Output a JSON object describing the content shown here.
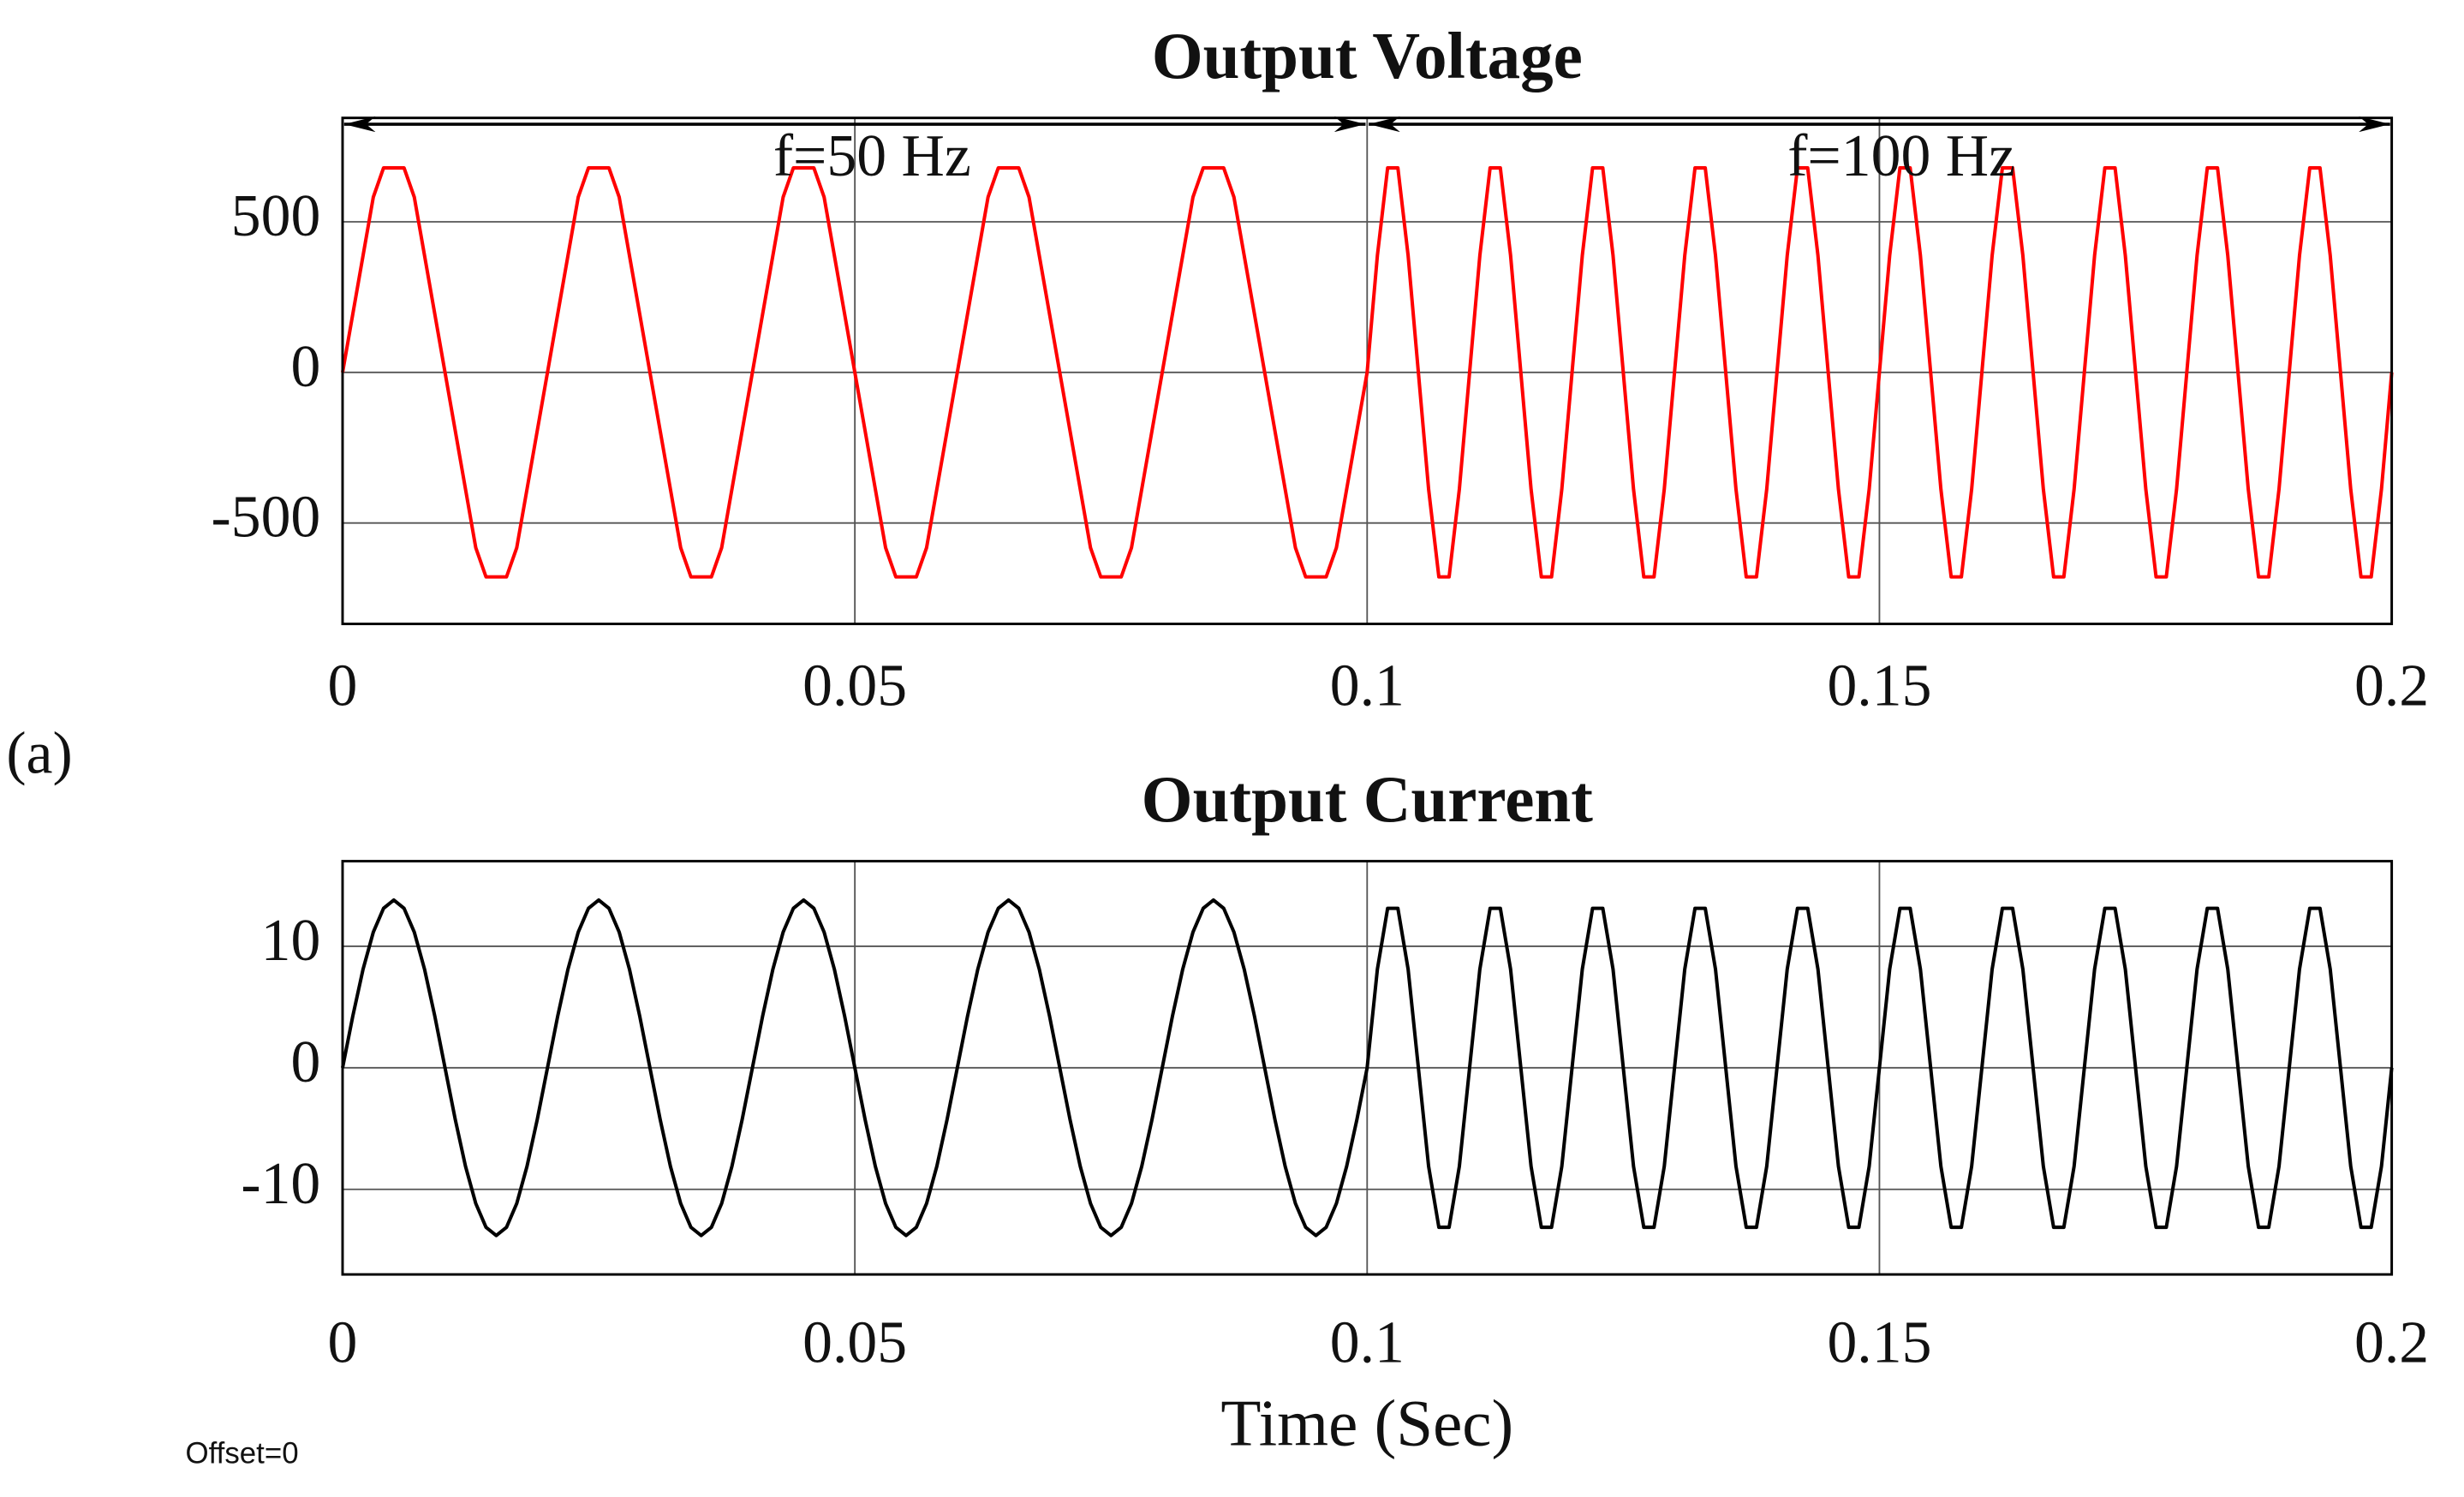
{
  "panel_label": "(a)",
  "footer": "Offset=0",
  "chart_data": [
    {
      "type": "line",
      "title": "Output Voltage",
      "color": "#ff0000",
      "grid": true,
      "annotations": [
        "f=50 Hz",
        "f=100 Hz"
      ],
      "xlim": [
        0,
        0.2
      ],
      "xticks": [
        0,
        0.05,
        0.1,
        0.15,
        0.2
      ],
      "ylim": [
        -835,
        845
      ],
      "yticks": [
        -500,
        0,
        500
      ],
      "x": [
        0,
        0.001,
        0.002,
        0.003,
        0.004,
        0.005,
        0.006,
        0.007,
        0.008,
        0.009,
        0.01,
        0.011,
        0.012,
        0.013,
        0.014,
        0.015,
        0.016,
        0.017,
        0.018,
        0.019,
        0.02,
        0.021,
        0.022,
        0.023,
        0.024,
        0.025,
        0.026,
        0.027,
        0.028,
        0.029,
        0.03,
        0.031,
        0.032,
        0.033,
        0.034,
        0.035,
        0.036,
        0.037,
        0.038,
        0.039,
        0.04,
        0.041,
        0.042,
        0.043,
        0.044,
        0.045,
        0.046,
        0.047,
        0.048,
        0.049,
        0.05,
        0.051,
        0.052,
        0.053,
        0.054,
        0.055,
        0.056,
        0.057,
        0.058,
        0.059,
        0.06,
        0.061,
        0.062,
        0.063,
        0.064,
        0.065,
        0.066,
        0.067,
        0.068,
        0.069,
        0.07,
        0.071,
        0.072,
        0.073,
        0.074,
        0.075,
        0.076,
        0.077,
        0.078,
        0.079,
        0.08,
        0.081,
        0.082,
        0.083,
        0.084,
        0.085,
        0.086,
        0.087,
        0.088,
        0.089,
        0.09,
        0.091,
        0.092,
        0.093,
        0.094,
        0.095,
        0.096,
        0.097,
        0.098,
        0.099,
        0.1,
        0.101,
        0.102,
        0.103,
        0.104,
        0.105,
        0.106,
        0.107,
        0.108,
        0.109,
        0.11,
        0.111,
        0.112,
        0.113,
        0.114,
        0.115,
        0.116,
        0.117,
        0.118,
        0.119,
        0.12,
        0.121,
        0.122,
        0.123,
        0.124,
        0.125,
        0.126,
        0.127,
        0.128,
        0.129,
        0.13,
        0.131,
        0.132,
        0.133,
        0.134,
        0.135,
        0.136,
        0.137,
        0.138,
        0.139,
        0.14,
        0.141,
        0.142,
        0.143,
        0.144,
        0.145,
        0.146,
        0.147,
        0.148,
        0.149,
        0.15,
        0.151,
        0.152,
        0.153,
        0.154,
        0.155,
        0.156,
        0.157,
        0.158,
        0.159,
        0.16,
        0.161,
        0.162,
        0.163,
        0.164,
        0.165,
        0.166,
        0.167,
        0.168,
        0.169,
        0.17,
        0.171,
        0.172,
        0.173,
        0.174,
        0.175,
        0.176,
        0.177,
        0.178,
        0.179,
        0.18,
        0.181,
        0.182,
        0.183,
        0.184,
        0.185,
        0.186,
        0.187,
        0.188,
        0.189,
        0.19,
        0.191,
        0.192,
        0.193,
        0.194,
        0.195,
        0.196,
        0.197,
        0.198,
        0.199,
        0.2
      ],
      "values": [
        0,
        194,
        388,
        582,
        679,
        679,
        679,
        582,
        388,
        194,
        0,
        -194,
        -388,
        -582,
        -679,
        -679,
        -679,
        -582,
        -388,
        -194,
        0,
        194,
        388,
        582,
        679,
        679,
        679,
        582,
        388,
        194,
        0,
        -194,
        -388,
        -582,
        -679,
        -679,
        -679,
        -582,
        -388,
        -194,
        0,
        194,
        388,
        582,
        679,
        679,
        679,
        582,
        388,
        194,
        0,
        -194,
        -388,
        -582,
        -679,
        -679,
        -679,
        -582,
        -388,
        -194,
        0,
        194,
        388,
        582,
        679,
        679,
        679,
        582,
        388,
        194,
        0,
        -194,
        -388,
        -582,
        -679,
        -679,
        -679,
        -582,
        -388,
        -194,
        0,
        194,
        388,
        582,
        679,
        679,
        679,
        582,
        388,
        194,
        0,
        -194,
        -388,
        -582,
        -679,
        -679,
        -679,
        -582,
        -388,
        -194,
        0,
        388,
        679,
        679,
        388,
        0,
        -388,
        -679,
        -679,
        -388,
        0,
        388,
        679,
        679,
        388,
        0,
        -388,
        -679,
        -679,
        -388,
        0,
        388,
        679,
        679,
        388,
        0,
        -388,
        -679,
        -679,
        -388,
        0,
        388,
        679,
        679,
        388,
        0,
        -388,
        -679,
        -679,
        -388,
        0,
        388,
        679,
        679,
        388,
        0,
        -388,
        -679,
        -679,
        -388,
        0,
        388,
        679,
        679,
        388,
        0,
        -388,
        -679,
        -679,
        -388,
        0,
        388,
        679,
        679,
        388,
        0,
        -388,
        -679,
        -679,
        -388,
        0,
        388,
        679,
        679,
        388,
        0,
        -388,
        -679,
        -679,
        -388,
        0,
        388,
        679,
        679,
        388,
        0,
        -388,
        -679,
        -679,
        -388,
        0,
        388,
        679,
        679,
        388,
        0,
        -388,
        -679,
        -679,
        -388,
        0
      ]
    },
    {
      "type": "line",
      "title": "Output Current",
      "color": "#000000",
      "grid": true,
      "xlabel": "Time (Sec)",
      "xlim": [
        0,
        0.2
      ],
      "xticks": [
        0,
        0.05,
        0.1,
        0.15,
        0.2
      ],
      "ylim": [
        -17,
        17
      ],
      "yticks": [
        -10,
        0,
        10
      ],
      "x": [
        0,
        0.001,
        0.002,
        0.003,
        0.004,
        0.005,
        0.006,
        0.007,
        0.008,
        0.009,
        0.01,
        0.011,
        0.012,
        0.013,
        0.014,
        0.015,
        0.016,
        0.017,
        0.018,
        0.019,
        0.02,
        0.021,
        0.022,
        0.023,
        0.024,
        0.025,
        0.026,
        0.027,
        0.028,
        0.029,
        0.03,
        0.031,
        0.032,
        0.033,
        0.034,
        0.035,
        0.036,
        0.037,
        0.038,
        0.039,
        0.04,
        0.041,
        0.042,
        0.043,
        0.044,
        0.045,
        0.046,
        0.047,
        0.048,
        0.049,
        0.05,
        0.051,
        0.052,
        0.053,
        0.054,
        0.055,
        0.056,
        0.057,
        0.058,
        0.059,
        0.06,
        0.061,
        0.062,
        0.063,
        0.064,
        0.065,
        0.066,
        0.067,
        0.068,
        0.069,
        0.07,
        0.071,
        0.072,
        0.073,
        0.074,
        0.075,
        0.076,
        0.077,
        0.078,
        0.079,
        0.08,
        0.081,
        0.082,
        0.083,
        0.084,
        0.085,
        0.086,
        0.087,
        0.088,
        0.089,
        0.09,
        0.091,
        0.092,
        0.093,
        0.094,
        0.095,
        0.096,
        0.097,
        0.098,
        0.099,
        0.1,
        0.101,
        0.102,
        0.103,
        0.104,
        0.105,
        0.106,
        0.107,
        0.108,
        0.109,
        0.11,
        0.111,
        0.112,
        0.113,
        0.114,
        0.115,
        0.116,
        0.117,
        0.118,
        0.119,
        0.12,
        0.121,
        0.122,
        0.123,
        0.124,
        0.125,
        0.126,
        0.127,
        0.128,
        0.129,
        0.13,
        0.131,
        0.132,
        0.133,
        0.134,
        0.135,
        0.136,
        0.137,
        0.138,
        0.139,
        0.14,
        0.141,
        0.142,
        0.143,
        0.144,
        0.145,
        0.146,
        0.147,
        0.148,
        0.149,
        0.15,
        0.151,
        0.152,
        0.153,
        0.154,
        0.155,
        0.156,
        0.157,
        0.158,
        0.159,
        0.16,
        0.161,
        0.162,
        0.163,
        0.164,
        0.165,
        0.166,
        0.167,
        0.168,
        0.169,
        0.17,
        0.171,
        0.172,
        0.173,
        0.174,
        0.175,
        0.176,
        0.177,
        0.178,
        0.179,
        0.18,
        0.181,
        0.182,
        0.183,
        0.184,
        0.185,
        0.186,
        0.187,
        0.188,
        0.189,
        0.19,
        0.191,
        0.192,
        0.193,
        0.194,
        0.195,
        0.196,
        0.197,
        0.198,
        0.199,
        0.2
      ],
      "values": [
        0,
        4.26,
        8.11,
        11.16,
        13.12,
        13.8,
        13.12,
        11.16,
        8.11,
        4.26,
        0,
        -4.26,
        -8.11,
        -11.16,
        -13.12,
        -13.8,
        -13.12,
        -11.16,
        -8.11,
        -4.26,
        0,
        4.26,
        8.11,
        11.16,
        13.12,
        13.8,
        13.12,
        11.16,
        8.11,
        4.26,
        0,
        -4.26,
        -8.11,
        -11.16,
        -13.12,
        -13.8,
        -13.12,
        -11.16,
        -8.11,
        -4.26,
        0,
        4.26,
        8.11,
        11.16,
        13.12,
        13.8,
        13.12,
        11.16,
        8.11,
        4.26,
        0,
        -4.26,
        -8.11,
        -11.16,
        -13.12,
        -13.8,
        -13.12,
        -11.16,
        -8.11,
        -4.26,
        0,
        4.26,
        8.11,
        11.16,
        13.12,
        13.8,
        13.12,
        11.16,
        8.11,
        4.26,
        0,
        -4.26,
        -8.11,
        -11.16,
        -13.12,
        -13.8,
        -13.12,
        -11.16,
        -8.11,
        -4.26,
        0,
        4.26,
        8.11,
        11.16,
        13.12,
        13.8,
        13.12,
        11.16,
        8.11,
        4.26,
        0,
        -4.26,
        -8.11,
        -11.16,
        -13.12,
        -13.8,
        -13.12,
        -11.16,
        -8.11,
        -4.26,
        0,
        8.11,
        13.12,
        13.12,
        8.11,
        0,
        -8.11,
        -13.12,
        -13.12,
        -8.11,
        0,
        8.11,
        13.12,
        13.12,
        8.11,
        0,
        -8.11,
        -13.12,
        -13.12,
        -8.11,
        0,
        8.11,
        13.12,
        13.12,
        8.11,
        0,
        -8.11,
        -13.12,
        -13.12,
        -8.11,
        0,
        8.11,
        13.12,
        13.12,
        8.11,
        0,
        -8.11,
        -13.12,
        -13.12,
        -8.11,
        0,
        8.11,
        13.12,
        13.12,
        8.11,
        0,
        -8.11,
        -13.12,
        -13.12,
        -8.11,
        0,
        8.11,
        13.12,
        13.12,
        8.11,
        0,
        -8.11,
        -13.12,
        -13.12,
        -8.11,
        0,
        8.11,
        13.12,
        13.12,
        8.11,
        0,
        -8.11,
        -13.12,
        -13.12,
        -8.11,
        0,
        8.11,
        13.12,
        13.12,
        8.11,
        0,
        -8.11,
        -13.12,
        -13.12,
        -8.11,
        0,
        8.11,
        13.12,
        13.12,
        8.11,
        0,
        -8.11,
        -13.12,
        -13.12,
        -8.11,
        0,
        8.11,
        13.12,
        13.12,
        8.11,
        0,
        -8.11,
        -13.12,
        -13.12,
        -8.11,
        0
      ]
    }
  ]
}
